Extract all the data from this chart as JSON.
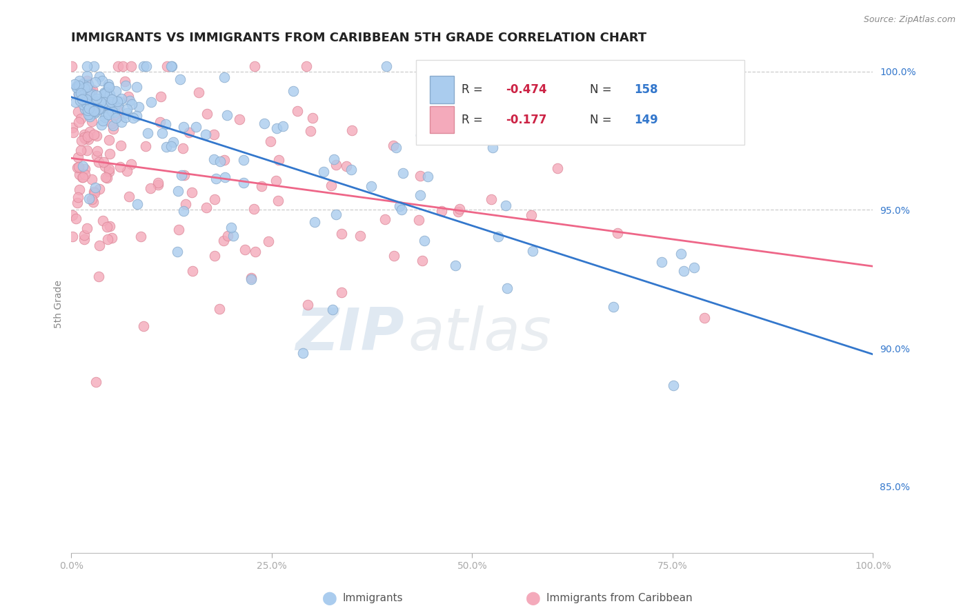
{
  "title": "IMMIGRANTS VS IMMIGRANTS FROM CARIBBEAN 5TH GRADE CORRELATION CHART",
  "source": "Source: ZipAtlas.com",
  "ylabel": "5th Grade",
  "blue_label": "Immigrants",
  "pink_label": "Immigrants from Caribbean",
  "blue_R": -0.474,
  "blue_N": 158,
  "pink_R": -0.177,
  "pink_N": 149,
  "blue_color": "#aaccee",
  "pink_color": "#f4aabb",
  "blue_line_color": "#3377cc",
  "pink_line_color": "#ee6688",
  "blue_edge_color": "#88aacc",
  "pink_edge_color": "#dd8899",
  "legend_R_color": "#cc2244",
  "legend_N_color": "#3377cc",
  "x_min": 0.0,
  "x_max": 1.0,
  "y_min": 0.826,
  "y_max": 1.006,
  "ytick_values": [
    0.85,
    0.9,
    0.95,
    1.0
  ],
  "ytick_labels": [
    "85.0%",
    "90.0%",
    "95.0%",
    "100.0%"
  ],
  "background_color": "#ffffff",
  "grid_color": "#cccccc",
  "watermark_zip": "ZIP",
  "watermark_atlas": "atlas",
  "title_fontsize": 13,
  "axis_label_fontsize": 10
}
